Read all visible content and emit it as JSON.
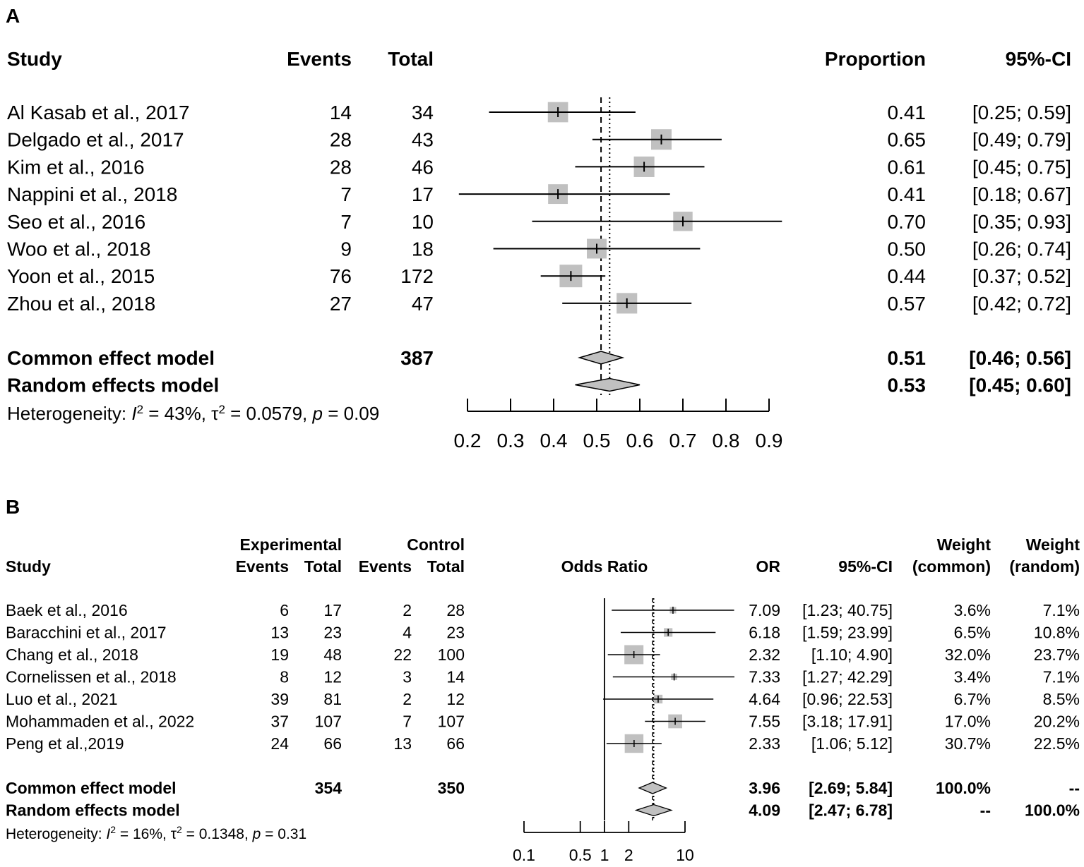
{
  "chart_data": [
    {
      "type": "forest",
      "panel_label": "A",
      "headers": {
        "study": "Study",
        "events": "Events",
        "total": "Total",
        "proportion": "Proportion",
        "ci": "95%-CI"
      },
      "studies": [
        {
          "study": "Al Kasab et al., 2017",
          "events": "14",
          "total": "34",
          "est": 0.41,
          "lo": 0.25,
          "hi": 0.59,
          "est_label": "0.41",
          "ci_label": "[0.25; 0.59]"
        },
        {
          "study": "Delgado et al., 2017",
          "events": "28",
          "total": "43",
          "est": 0.65,
          "lo": 0.49,
          "hi": 0.79,
          "est_label": "0.65",
          "ci_label": "[0.49; 0.79]"
        },
        {
          "study": "Kim et al., 2016",
          "events": "28",
          "total": "46",
          "est": 0.61,
          "lo": 0.45,
          "hi": 0.75,
          "est_label": "0.61",
          "ci_label": "[0.45; 0.75]"
        },
        {
          "study": "Nappini et al., 2018",
          "events": "7",
          "total": "17",
          "est": 0.41,
          "lo": 0.18,
          "hi": 0.67,
          "est_label": "0.41",
          "ci_label": "[0.18; 0.67]"
        },
        {
          "study": "Seo et al., 2016",
          "events": "7",
          "total": "10",
          "est": 0.7,
          "lo": 0.35,
          "hi": 0.93,
          "est_label": "0.70",
          "ci_label": "[0.35; 0.93]"
        },
        {
          "study": "Woo et al., 2018",
          "events": "9",
          "total": "18",
          "est": 0.5,
          "lo": 0.26,
          "hi": 0.74,
          "est_label": "0.50",
          "ci_label": "[0.26; 0.74]"
        },
        {
          "study": "Yoon et al., 2015",
          "events": "76",
          "total": "172",
          "est": 0.44,
          "lo": 0.37,
          "hi": 0.52,
          "est_label": "0.44",
          "ci_label": "[0.37; 0.52]"
        },
        {
          "study": "Zhou et al., 2018",
          "events": "27",
          "total": "47",
          "est": 0.57,
          "lo": 0.42,
          "hi": 0.72,
          "est_label": "0.57",
          "ci_label": "[0.42; 0.72]"
        }
      ],
      "models": [
        {
          "label": "Common effect model",
          "total": "387",
          "est": 0.51,
          "lo": 0.46,
          "hi": 0.56,
          "est_label": "0.51",
          "ci_label": "[0.46; 0.56]"
        },
        {
          "label": "Random effects model",
          "total": "",
          "est": 0.53,
          "lo": 0.45,
          "hi": 0.6,
          "est_label": "0.53",
          "ci_label": "[0.45; 0.60]"
        }
      ],
      "heterogeneity": {
        "prefix": "Heterogeneity: ",
        "i2_symbol": "I",
        "sup": "2",
        "i2": " = 43%, ",
        "tau_symbol": "τ",
        "tau": " = 0.0579, ",
        "p_symbol": "p",
        "p": " = 0.09"
      },
      "axis": {
        "scale": "linear",
        "ticks": [
          0.2,
          0.3,
          0.4,
          0.5,
          0.6,
          0.7,
          0.8,
          0.9
        ],
        "tick_labels": [
          "0.2",
          "0.3",
          "0.4",
          "0.5",
          "0.6",
          "0.7",
          "0.8",
          "0.9"
        ],
        "range": [
          0.2,
          0.9
        ]
      },
      "ref_lines": {
        "common": 0.51,
        "random": 0.53
      }
    },
    {
      "type": "forest",
      "panel_label": "B",
      "headers": {
        "experimental": "Experimental",
        "control": "Control",
        "study": "Study",
        "exp_events": "Events",
        "exp_total": "Total",
        "ctl_events": "Events",
        "ctl_total": "Total",
        "odds_ratio": "Odds Ratio",
        "or": "OR",
        "ci": "95%-CI",
        "weight": "Weight",
        "weight_common": "(common)",
        "weight_random": "(random)"
      },
      "studies": [
        {
          "study": "Baek et al., 2016",
          "exp_events": "6",
          "exp_total": "17",
          "ctl_events": "2",
          "ctl_total": "28",
          "est": 7.09,
          "lo": 1.23,
          "hi": 40.75,
          "or_label": "7.09",
          "ci_label": "[1.23; 40.75]",
          "w_common_val": 3.6,
          "w_common": "3.6%",
          "w_random": "7.1%"
        },
        {
          "study": "Baracchini et al., 2017",
          "exp_events": "13",
          "exp_total": "23",
          "ctl_events": "4",
          "ctl_total": "23",
          "est": 6.18,
          "lo": 1.59,
          "hi": 23.99,
          "or_label": "6.18",
          "ci_label": "[1.59; 23.99]",
          "w_common_val": 6.5,
          "w_common": "6.5%",
          "w_random": "10.8%"
        },
        {
          "study": "Chang et al., 2018",
          "exp_events": "19",
          "exp_total": "48",
          "ctl_events": "22",
          "ctl_total": "100",
          "est": 2.32,
          "lo": 1.1,
          "hi": 4.9,
          "or_label": "2.32",
          "ci_label": "[1.10;  4.90]",
          "w_common_val": 32.0,
          "w_common": "32.0%",
          "w_random": "23.7%"
        },
        {
          "study": "Cornelissen et al., 2018",
          "exp_events": "8",
          "exp_total": "12",
          "ctl_events": "3",
          "ctl_total": "14",
          "est": 7.33,
          "lo": 1.27,
          "hi": 42.29,
          "or_label": "7.33",
          "ci_label": "[1.27; 42.29]",
          "w_common_val": 3.4,
          "w_common": "3.4%",
          "w_random": "7.1%"
        },
        {
          "study": "Luo et al., 2021",
          "exp_events": "39",
          "exp_total": "81",
          "ctl_events": "2",
          "ctl_total": "12",
          "est": 4.64,
          "lo": 0.96,
          "hi": 22.53,
          "or_label": "4.64",
          "ci_label": "[0.96; 22.53]",
          "w_common_val": 6.7,
          "w_common": "6.7%",
          "w_random": "8.5%"
        },
        {
          "study": "Mohammaden et al., 2022",
          "exp_events": "37",
          "exp_total": "107",
          "ctl_events": "7",
          "ctl_total": "107",
          "est": 7.55,
          "lo": 3.18,
          "hi": 17.91,
          "or_label": "7.55",
          "ci_label": "[3.18; 17.91]",
          "w_common_val": 17.0,
          "w_common": "17.0%",
          "w_random": "20.2%"
        },
        {
          "study": "Peng et al.,2019",
          "exp_events": "24",
          "exp_total": "66",
          "ctl_events": "13",
          "ctl_total": "66",
          "est": 2.33,
          "lo": 1.06,
          "hi": 5.12,
          "or_label": "2.33",
          "ci_label": "[1.06;  5.12]",
          "w_common_val": 30.7,
          "w_common": "30.7%",
          "w_random": "22.5%"
        }
      ],
      "models": [
        {
          "label": "Common effect model",
          "exp_total": "354",
          "ctl_total": "350",
          "est": 3.96,
          "lo": 2.69,
          "hi": 5.84,
          "or_label": "3.96",
          "ci_label": "[2.69;  5.84]",
          "w_common": "100.0%",
          "w_random": "--"
        },
        {
          "label": "Random effects model",
          "exp_total": "",
          "ctl_total": "",
          "est": 4.09,
          "lo": 2.47,
          "hi": 6.78,
          "or_label": "4.09",
          "ci_label": "[2.47;  6.78]",
          "w_common": "--",
          "w_random": "100.0%"
        }
      ],
      "heterogeneity": {
        "prefix": "Heterogeneity: ",
        "i2_symbol": "I",
        "sup": "2",
        "i2": " = 16%, ",
        "tau_symbol": "τ",
        "tau": " = 0.1348, ",
        "p_symbol": "p",
        "p": " = 0.31"
      },
      "axis": {
        "scale": "log",
        "ticks": [
          0.1,
          0.5,
          1,
          2,
          10
        ],
        "tick_labels": [
          "0.1",
          "0.5",
          "1",
          "2",
          "10"
        ],
        "range": [
          0.1,
          10
        ]
      },
      "ref_lines": {
        "null": 1,
        "common": 3.96,
        "random": 4.09
      }
    }
  ]
}
